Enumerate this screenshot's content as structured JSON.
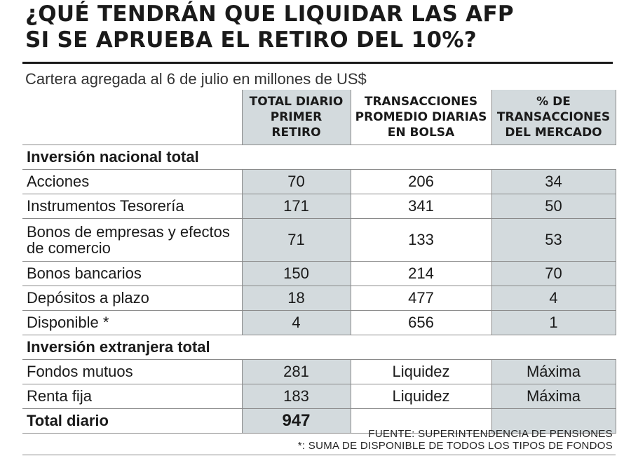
{
  "title": {
    "line1": "¿QUÉ TENDRÁN QUE LIQUIDAR LAS AFP",
    "line2": "SI SE APRUEBA EL RETIRO DEL 10%?"
  },
  "subtitle": "Cartera agregada al 6 de julio en millones de US$",
  "columns": {
    "col1": "TOTAL DIARIO PRIMER RETIRO",
    "col2": "TRANSACCIONES PROMEDIO DIARIAS EN BOLSA",
    "col3": "% DE TRANSACCIONES DEL MERCADO"
  },
  "sections": [
    {
      "name": "Inversión nacional total",
      "rows": [
        {
          "label": "Acciones",
          "v1": "70",
          "v2": "206",
          "v3": "34"
        },
        {
          "label": "Instrumentos Tesorería",
          "v1": "171",
          "v2": "341",
          "v3": "50"
        },
        {
          "label": "Bonos de empresas y efectos de comercio",
          "v1": "71",
          "v2": "133",
          "v3": "53"
        },
        {
          "label": "Bonos bancarios",
          "v1": "150",
          "v2": "214",
          "v3": "70"
        },
        {
          "label": "Depósitos a plazo",
          "v1": "18",
          "v2": "477",
          "v3": "4"
        },
        {
          "label": "Disponible *",
          "v1": "4",
          "v2": "656",
          "v3": "1"
        }
      ]
    },
    {
      "name": "Inversión extranjera total",
      "rows": [
        {
          "label": "Fondos mutuos",
          "v1": "281",
          "v2": "Liquidez",
          "v3": "Máxima"
        },
        {
          "label": "Renta fija",
          "v1": "183",
          "v2": "Liquidez",
          "v3": "Máxima"
        }
      ]
    }
  ],
  "total": {
    "label": "Total diario",
    "v1": "947"
  },
  "footer": {
    "source": "FUENTE: SUPERINTENDENCIA DE PENSIONES",
    "note": "*: SUMA DE DISPONIBLE DE TODOS LOS TIPOS DE FONDOS"
  },
  "colors": {
    "shade": "#d3dadd",
    "rule": "#1a1a1a"
  }
}
